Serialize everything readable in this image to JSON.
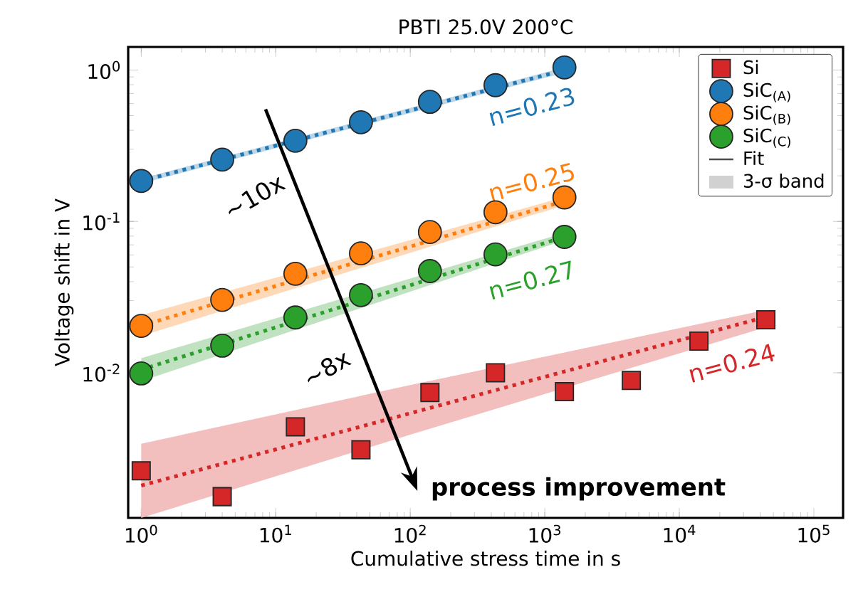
{
  "chart_data": {
    "type": "scatter",
    "title": "PBTI 25.0V 200°C",
    "xlabel": "Cumulative stress time in s",
    "ylabel": "Voltage shift in V",
    "log": "xy",
    "xlim": [
      0.8,
      165000
    ],
    "ylim": [
      0.0011,
      1.42
    ],
    "xticks": [
      {
        "value": 1,
        "label": "10$^{0}$"
      },
      {
        "value": 10,
        "label": "10$^{1}$"
      },
      {
        "value": 100,
        "label": "10$^{2}$"
      },
      {
        "value": 1000,
        "label": "10$^{3}$"
      },
      {
        "value": 10000,
        "label": "10$^{4}$"
      },
      {
        "value": 100000,
        "label": "10$^{5}$"
      }
    ],
    "yticks": [
      {
        "value": 0.01,
        "label": "10$^{-2}$"
      },
      {
        "value": 0.1,
        "label": "10$^{-1}$"
      },
      {
        "value": 1,
        "label": "10$^{0}$"
      }
    ],
    "legend": "top right",
    "series": [
      {
        "type": "line",
        "color": "#d62728",
        "line_style": "dotted",
        "marker": "none",
        "x": [
          1,
          100,
          44000
        ],
        "values": [
          0.0018,
          0.0054,
          0.0234
        ],
        "lower": [
          0.0011,
          0.0039,
          0.02
        ],
        "upper": [
          0.0034,
          0.0083,
          0.026
        ]
      },
      {
        "type": "line",
        "color": "#1f77b4",
        "line_style": "dotted",
        "marker": "none",
        "x": [
          1,
          1400
        ],
        "values": [
          0.185,
          1.0
        ],
        "lower": [
          0.178,
          0.96
        ],
        "upper": [
          0.192,
          1.04
        ]
      },
      {
        "type": "line",
        "color": "#ff7f0e",
        "line_style": "dotted",
        "marker": "none",
        "x": [
          1,
          1400
        ],
        "values": [
          0.0205,
          0.136
        ],
        "lower": [
          0.0175,
          0.128
        ],
        "upper": [
          0.024,
          0.145
        ]
      },
      {
        "type": "line",
        "color": "#2ca02c",
        "line_style": "dotted",
        "marker": "none",
        "x": [
          1,
          1400
        ],
        "values": [
          0.0105,
          0.079
        ],
        "lower": [
          0.0088,
          0.075
        ],
        "upper": [
          0.0125,
          0.084
        ]
      },
      {
        "name": "Si",
        "type": "scatter",
        "color": "#d62728",
        "marker": "square",
        "x": [
          1,
          4,
          14,
          43,
          140,
          430,
          1400,
          4400,
          14000,
          44000
        ],
        "values": [
          0.00225,
          0.00152,
          0.0044,
          0.0031,
          0.0074,
          0.01,
          0.0075,
          0.0089,
          0.0162,
          0.0224
        ]
      },
      {
        "name": "SiC$_{(A)}$",
        "type": "scatter",
        "color": "#1f77b4",
        "marker": "circle",
        "x": [
          1,
          4,
          14,
          43,
          140,
          430,
          1400
        ],
        "values": [
          0.185,
          0.256,
          0.341,
          0.452,
          0.616,
          0.794,
          1.04
        ]
      },
      {
        "name": "SiC$_{(B)}$",
        "type": "scatter",
        "color": "#ff7f0e",
        "marker": "circle",
        "x": [
          1,
          4,
          14,
          43,
          140,
          430,
          1400
        ],
        "values": [
          0.0204,
          0.0303,
          0.0451,
          0.0615,
          0.0851,
          0.115,
          0.144
        ]
      },
      {
        "name": "SiC$_{(C)}$",
        "type": "scatter",
        "color": "#2ca02c",
        "marker": "circle",
        "x": [
          1,
          4,
          14,
          43,
          140,
          430,
          1400
        ],
        "values": [
          0.0099,
          0.0151,
          0.0232,
          0.0326,
          0.047,
          0.0605,
          0.079
        ]
      }
    ],
    "annotations": [
      "n=0.23",
      "n=0.25",
      "n=0.27",
      "n=0.24",
      "~10x",
      "~8x",
      "process improvement",
      "Fit",
      "3-σ band"
    ]
  }
}
